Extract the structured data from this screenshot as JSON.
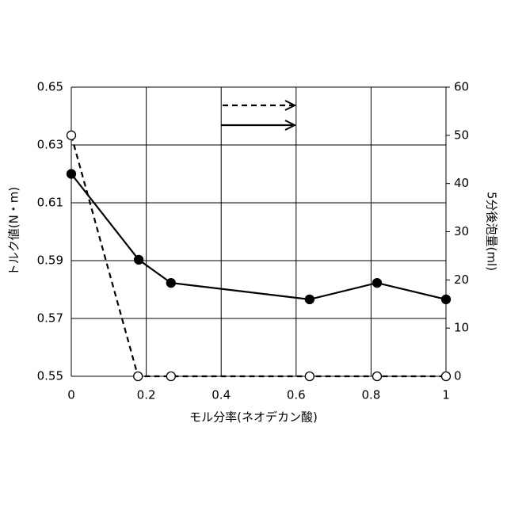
{
  "chart_data": {
    "type": "line",
    "x_label": "モル分率(ネオデカン酸)",
    "y_label": "トルク値(N・m)",
    "y2_label": "5分後泡量(ml)",
    "xlim": [
      0,
      1
    ],
    "xticks": [
      0,
      0.2,
      0.4,
      0.6,
      0.8,
      1
    ],
    "ylim": [
      0.55,
      0.65
    ],
    "yticks": [
      0.55,
      0.57,
      0.59,
      0.61,
      0.63,
      0.65
    ],
    "y2lim": [
      0,
      60
    ],
    "y2ticks": [
      0,
      10,
      20,
      30,
      40,
      50,
      60
    ],
    "grid": true,
    "series": [
      {
        "color": "#000000",
        "line_style": "solid",
        "marker": "filled",
        "x": [
          0,
          0.18,
          0.266,
          0.636,
          0.816,
          1
        ],
        "values": [
          0.62,
          0.5903,
          0.5823,
          0.5766,
          0.5823,
          0.5766
        ]
      },
      {
        "color": "#000000",
        "line_style": "dashed",
        "marker": "open",
        "axis": "y2",
        "x": [
          0,
          0.178,
          0.266,
          0.636,
          0.816,
          1
        ],
        "values": [
          50,
          0,
          0,
          0,
          0,
          0
        ]
      }
    ]
  }
}
